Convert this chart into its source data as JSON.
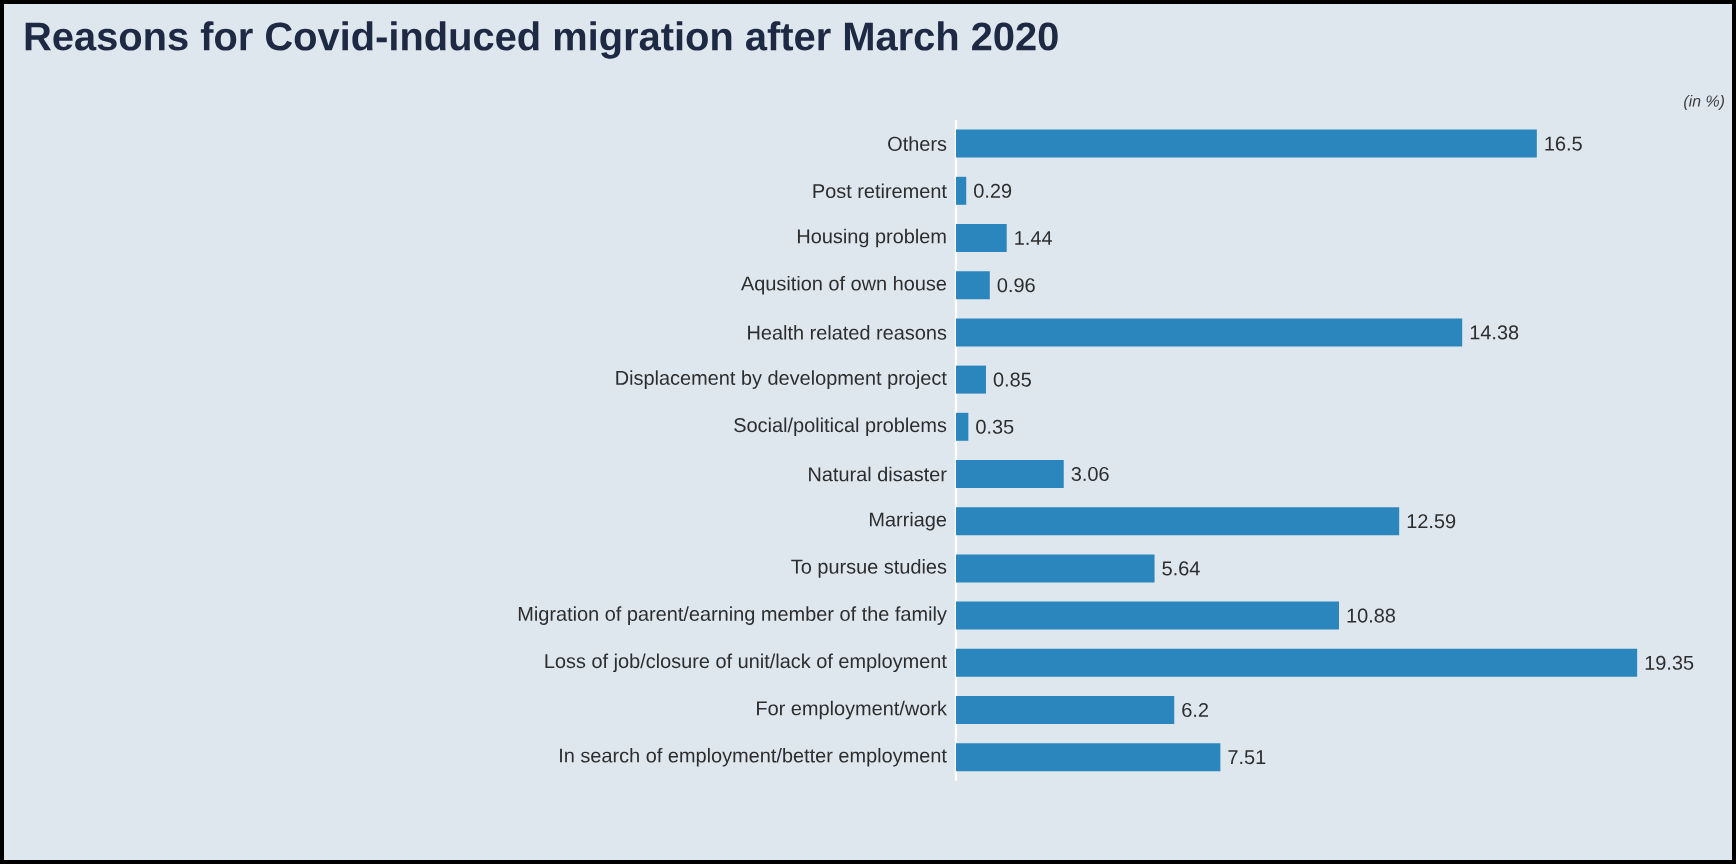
{
  "chart_data": {
    "type": "bar",
    "orientation": "horizontal",
    "title": "Reasons for Covid-induced migration after March 2020",
    "categories": [
      "Others",
      "Post retirement",
      "Housing problem",
      "Aqusition of own house",
      "Health related reasons",
      "Displacement by development project",
      "Social/political problems",
      "Natural disaster",
      "Marriage",
      "To pursue studies",
      "Migration of parent/earning member of the family",
      "Loss of job/closure of unit/lack of employment",
      "For employment/work",
      "In search of employment/better employment"
    ],
    "values": [
      16.5,
      0.29,
      1.44,
      0.96,
      14.38,
      0.85,
      0.35,
      3.06,
      12.59,
      5.64,
      10.88,
      19.35,
      6.2,
      7.51
    ],
    "value_labels": [
      "16.5",
      "0.29",
      "1.44",
      "0.96",
      "14.38",
      "0.85",
      "0.35",
      "3.06",
      "12.59",
      "5.64",
      "10.88",
      "19.35",
      "6.2",
      "7.51"
    ],
    "color": "#2a86bd",
    "annotations": [
      "(in %)"
    ]
  }
}
